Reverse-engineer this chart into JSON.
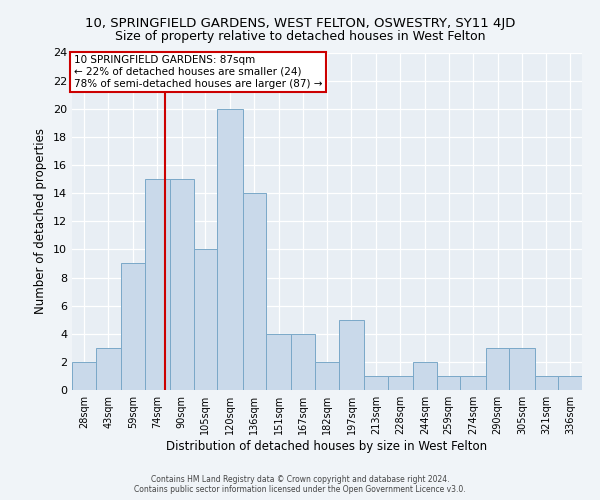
{
  "title1": "10, SPRINGFIELD GARDENS, WEST FELTON, OSWESTRY, SY11 4JD",
  "title2": "Size of property relative to detached houses in West Felton",
  "xlabel": "Distribution of detached houses by size in West Felton",
  "ylabel": "Number of detached properties",
  "bin_edges": [
    28,
    43,
    59,
    74,
    90,
    105,
    120,
    136,
    151,
    167,
    182,
    197,
    213,
    228,
    244,
    259,
    274,
    290,
    305,
    321,
    336,
    351
  ],
  "counts": [
    2,
    3,
    9,
    15,
    15,
    10,
    20,
    14,
    4,
    4,
    2,
    5,
    1,
    1,
    2,
    1,
    1,
    3,
    3,
    1,
    1
  ],
  "bar_color": "#c9d9ea",
  "bar_edgecolor": "#7aa8c8",
  "vline_x": 87,
  "vline_color": "#cc0000",
  "annotation_text": "10 SPRINGFIELD GARDENS: 87sqm\n← 22% of detached houses are smaller (24)\n78% of semi-detached houses are larger (87) →",
  "annotation_box_color": "#cc0000",
  "ylim": [
    0,
    24
  ],
  "yticks": [
    0,
    2,
    4,
    6,
    8,
    10,
    12,
    14,
    16,
    18,
    20,
    22,
    24
  ],
  "tick_labels": [
    "28sqm",
    "43sqm",
    "59sqm",
    "74sqm",
    "90sqm",
    "105sqm",
    "120sqm",
    "136sqm",
    "151sqm",
    "167sqm",
    "182sqm",
    "197sqm",
    "213sqm",
    "228sqm",
    "244sqm",
    "259sqm",
    "274sqm",
    "290sqm",
    "305sqm",
    "321sqm",
    "336sqm"
  ],
  "footer1": "Contains HM Land Registry data © Crown copyright and database right 2024.",
  "footer2": "Contains public sector information licensed under the Open Government Licence v3.0.",
  "bg_color": "#f0f4f8",
  "plot_bg_color": "#e8eef4"
}
